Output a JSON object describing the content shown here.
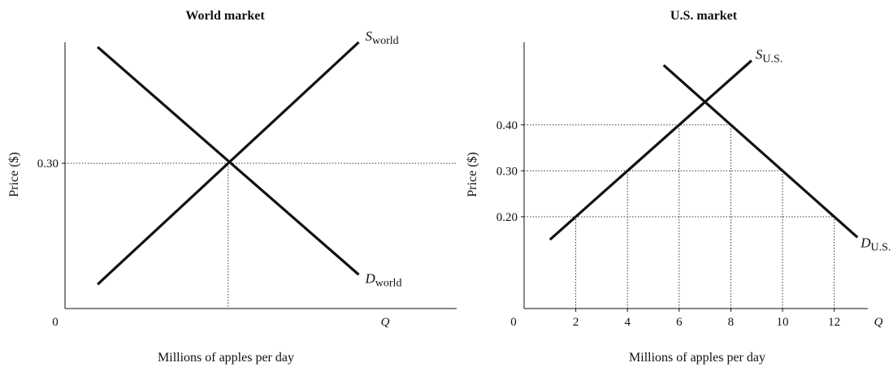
{
  "chart_data": [
    {
      "type": "line",
      "title": "World market",
      "xlabel": "Millions of apples per day",
      "ylabel": "Price ($)",
      "x_axis_end_label": "Q",
      "origin_label": "0",
      "x_ticks": [],
      "y_ticks": [
        {
          "value": 0.3,
          "label": "0.30"
        }
      ],
      "xlim": [
        0,
        12
      ],
      "ylim": [
        0,
        0.55
      ],
      "series": [
        {
          "name": "S",
          "subscript": "world",
          "points": [
            [
              1,
              0.05
            ],
            [
              9,
              0.55
            ]
          ]
        },
        {
          "name": "D",
          "subscript": "world",
          "points": [
            [
              1,
              0.54
            ],
            [
              9,
              0.07
            ]
          ]
        }
      ],
      "guides": {
        "price": 0.3,
        "equilibrium_q": 5
      }
    },
    {
      "type": "line",
      "title": "U.S. market",
      "xlabel": "Millions of apples per day",
      "ylabel": "Price ($)",
      "x_axis_end_label": "Q",
      "origin_label": "0",
      "x_ticks": [
        {
          "value": 2,
          "label": "2"
        },
        {
          "value": 4,
          "label": "4"
        },
        {
          "value": 6,
          "label": "6"
        },
        {
          "value": 8,
          "label": "8"
        },
        {
          "value": 10,
          "label": "10"
        },
        {
          "value": 12,
          "label": "12"
        }
      ],
      "y_ticks": [
        {
          "value": 0.2,
          "label": "0.20"
        },
        {
          "value": 0.3,
          "label": "0.30"
        },
        {
          "value": 0.4,
          "label": "0.40"
        }
      ],
      "xlim": [
        0,
        13.3
      ],
      "ylim": [
        0,
        0.58
      ],
      "series": [
        {
          "name": "S",
          "subscript": "U.S.",
          "points": [
            [
              1,
              0.15
            ],
            [
              8.8,
              0.54
            ]
          ]
        },
        {
          "name": "D",
          "subscript": "U.S.",
          "points": [
            [
              5.4,
              0.53
            ],
            [
              12.9,
              0.155
            ]
          ]
        }
      ],
      "guides": {
        "prices": [
          0.2,
          0.3,
          0.4
        ],
        "quantities": [
          2,
          4,
          6,
          8,
          10,
          12
        ]
      }
    }
  ]
}
